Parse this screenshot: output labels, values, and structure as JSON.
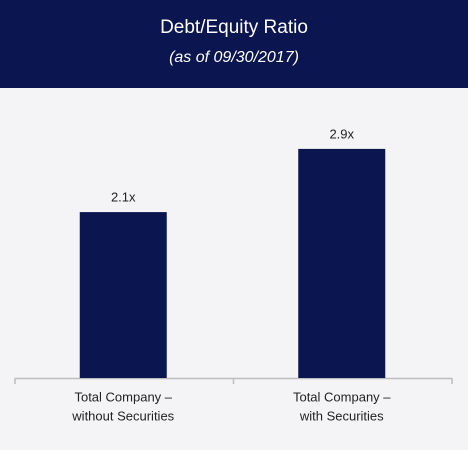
{
  "chart_data": {
    "type": "bar",
    "title": "Debt/Equity Ratio",
    "subtitle": "(as of 09/30/2017)",
    "categories": [
      [
        "Total Company –",
        "without Securities"
      ],
      [
        "Total Company –",
        "with Securities"
      ]
    ],
    "values": [
      2.1,
      2.9
    ],
    "value_labels": [
      "2.1x",
      "2.9x"
    ],
    "color": "#0b1550"
  }
}
